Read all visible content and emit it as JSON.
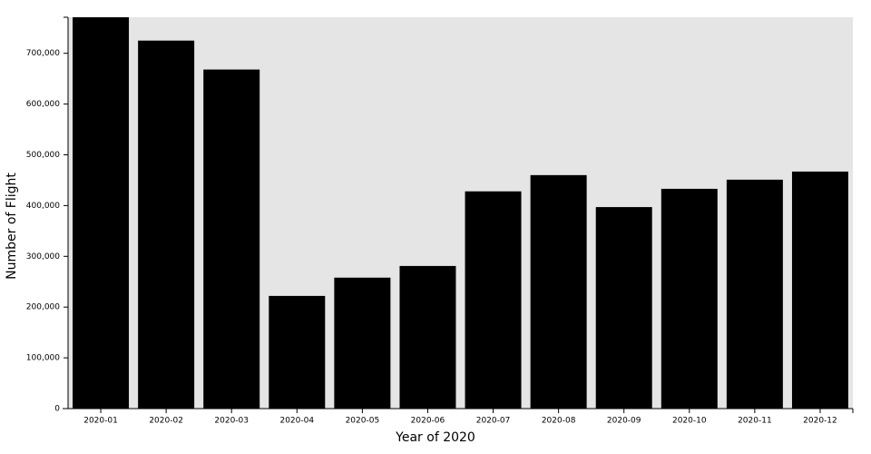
{
  "chart_data": {
    "type": "bar",
    "x_label": "Year of 2020",
    "y_label": "Number of Flight",
    "categories": [
      "2020-01",
      "2020-02",
      "2020-03",
      "2020-04",
      "2020-05",
      "2020-06",
      "2020-07",
      "2020-08",
      "2020-09",
      "2020-10",
      "2020-11",
      "2020-12"
    ],
    "values": [
      771000,
      725000,
      668000,
      222000,
      258000,
      281000,
      428000,
      460000,
      397000,
      433000,
      451000,
      467000
    ],
    "color": "#000000",
    "background": "#e5e5e5",
    "ylim": [
      0,
      771000
    ],
    "yticks": [
      0,
      {
        "value": 100000,
        "label": "100,000"
      },
      {
        "value": 200000,
        "label": "200,000"
      },
      {
        "value": 300000,
        "label": "300,000"
      },
      {
        "value": 400000,
        "label": "400,000"
      },
      {
        "value": 500000,
        "label": "500,000"
      },
      {
        "value": 600000,
        "label": "600,000"
      },
      {
        "value": 700000,
        "label": "700,000"
      }
    ]
  }
}
